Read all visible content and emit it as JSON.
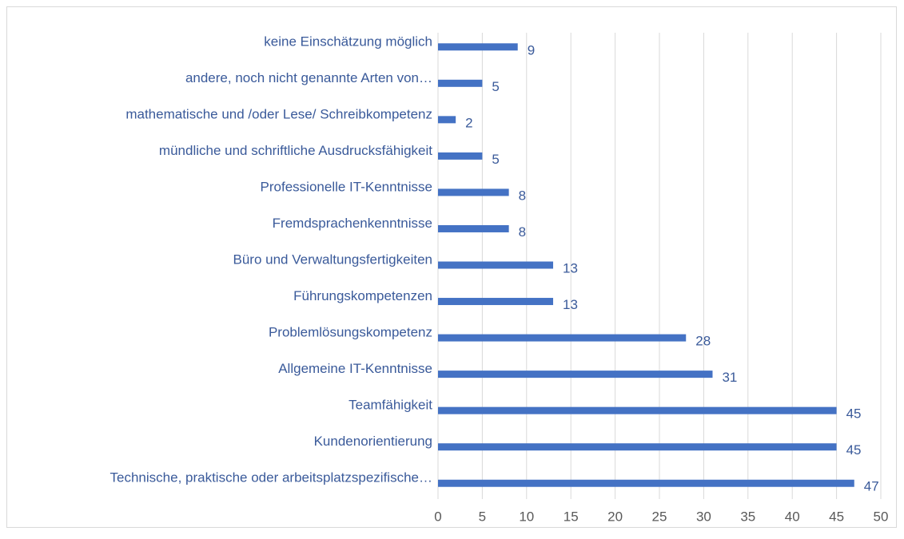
{
  "chart_data": {
    "type": "barh",
    "categories": [
      "Technische, praktische oder arbeitsplatzspezifische…",
      "Kundenorientierung",
      "Teamfähigkeit",
      "Allgemeine IT-Kenntnisse",
      "Problemlösungskompetenz",
      "Führungskompetenzen",
      "Büro und Verwaltungsfertigkeiten",
      "Fremdsprachenkenntnisse",
      "Professionelle IT-Kenntnisse",
      "mündliche und schriftliche Ausdrucksfähigkeit",
      "mathematische und /oder Lese/ Schreibkompetenz",
      "andere, noch nicht genannte Arten von…",
      "keine Einschätzung möglich"
    ],
    "values": [
      47,
      45,
      45,
      31,
      28,
      13,
      13,
      8,
      8,
      5,
      2,
      5,
      9
    ],
    "color": "#4472c4",
    "xlim": [
      0,
      50
    ],
    "xticks": [
      0,
      5,
      10,
      15,
      20,
      25,
      30,
      35,
      40,
      45,
      50
    ],
    "grid": true
  }
}
